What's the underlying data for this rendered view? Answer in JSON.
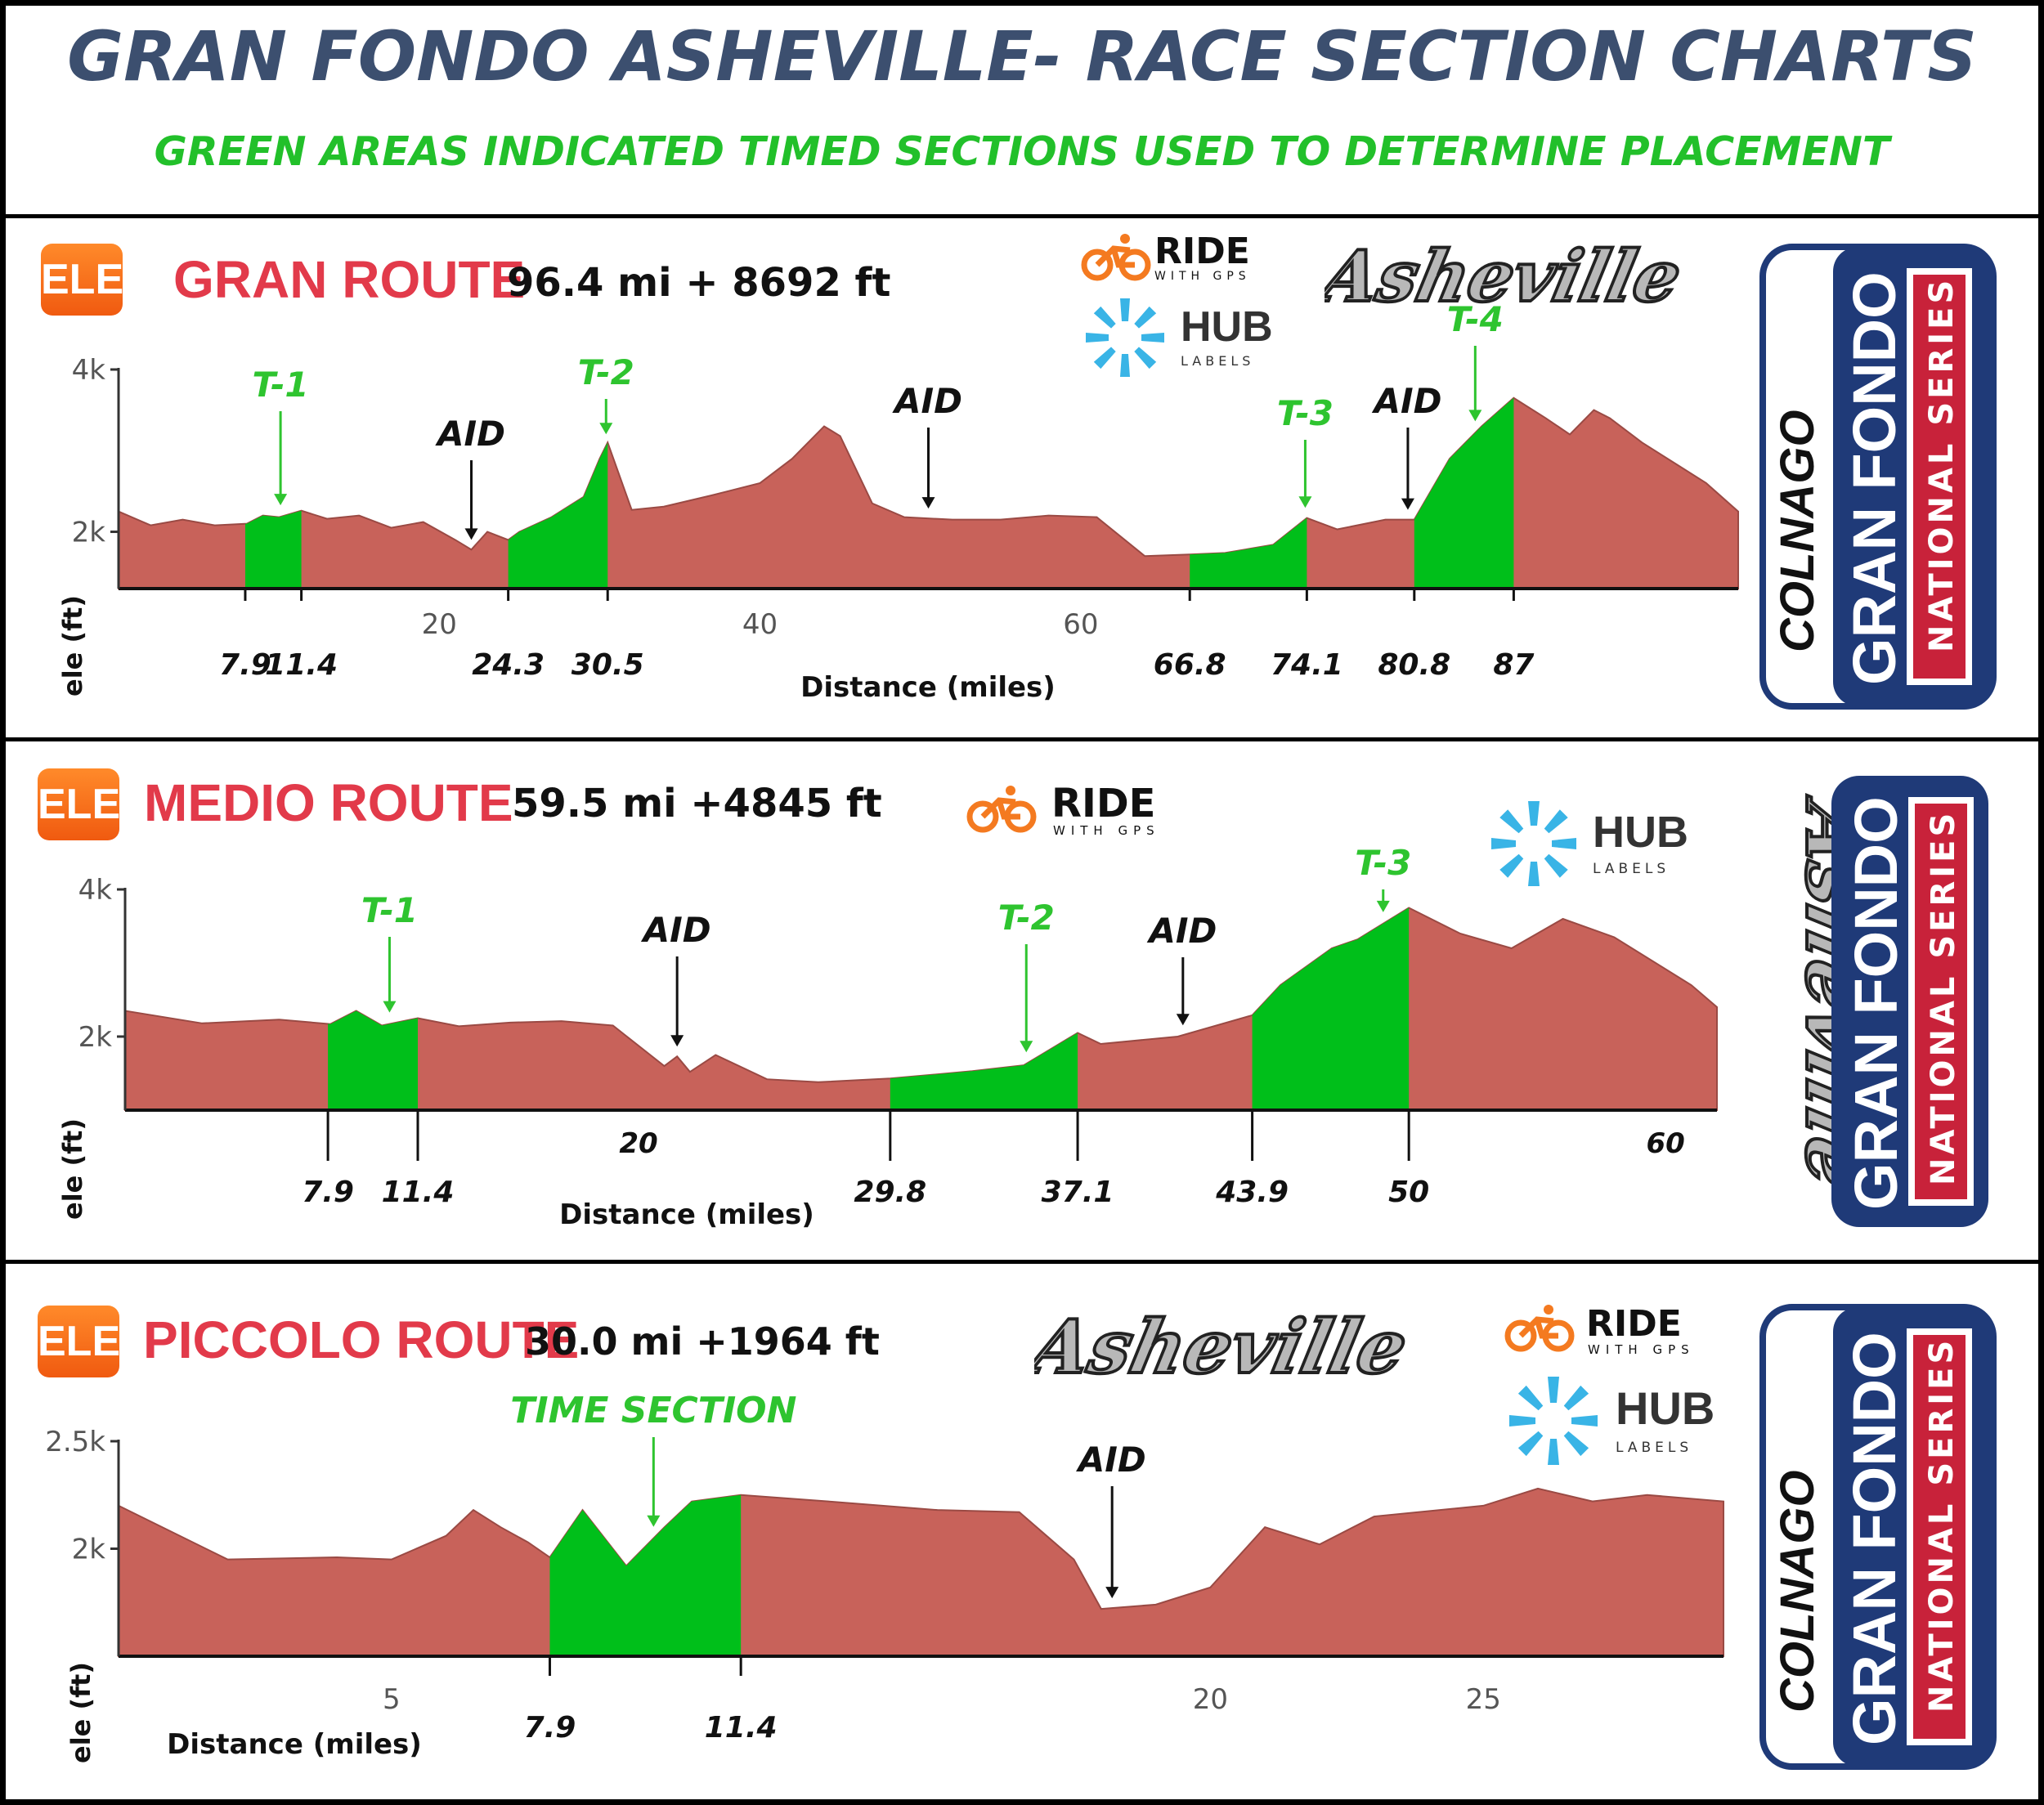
{
  "header": {
    "title": "GRAN FONDO ASHEVILLE- RACE SECTION CHARTS",
    "subtitle": "GREEN AREAS INDICATED TIMED SECTIONS USED TO DETERMINE PLACEMENT"
  },
  "branding": {
    "ele_badge": "ELE",
    "ride_with_gps_line1": "RIDE",
    "ride_with_gps_line2": "WITH GPS",
    "hub_line1": "HUB",
    "hub_line2": "LABELS",
    "asheville_script": "Asheville",
    "colnago": "COLNAGO",
    "gran_fondo": "GRAN FONDO",
    "national_series": "NATIONAL SERIES"
  },
  "colors": {
    "title": "#3c4f6f",
    "subtitle_green": "#22c02a",
    "route_red": "#e23a4a",
    "profile_fill": "#c8625a",
    "timed_fill": "#00bf1a",
    "label_green": "#2ec42f",
    "badge_orange": "#f47a20",
    "hub_blue": "#39b4e6",
    "navy": "#1f3a78",
    "series_red": "#c8223a"
  },
  "routes": [
    {
      "name": "GRAN ROUTE",
      "stats": "96.4 mi + 8692 ft"
    },
    {
      "name": "MEDIO ROUTE",
      "stats": "59.5 mi +4845 ft"
    },
    {
      "name": "PICCOLO ROUTE",
      "stats": "30.0 mi +1964 ft"
    }
  ],
  "chart_data": [
    {
      "type": "area",
      "xlabel": "Distance (miles)",
      "ylabel": "ele (ft)",
      "xlim": [
        0,
        101
      ],
      "ylim": [
        1300,
        4000
      ],
      "x_ticks": [
        20,
        40,
        60
      ],
      "x_tick_labels": [
        "20",
        "40",
        "60"
      ],
      "y_ticks": [
        2000,
        4000
      ],
      "y_tick_labels": [
        "2k",
        "4k"
      ],
      "profile": {
        "x": [
          0,
          2,
          4,
          6,
          8,
          9,
          10,
          11.4,
          13,
          15,
          17,
          19,
          21,
          22,
          23,
          24.3,
          25,
          27,
          29,
          30,
          30.5,
          32,
          34,
          37,
          40,
          42,
          44,
          45,
          47,
          49,
          52,
          55,
          58,
          61,
          64,
          66.8,
          69,
          72,
          74.1,
          76,
          79,
          80.8,
          83,
          85,
          87,
          89,
          90.5,
          92,
          93,
          95,
          97,
          99,
          101
        ],
        "y": [
          2250,
          2080,
          2150,
          2080,
          2100,
          2200,
          2180,
          2260,
          2160,
          2200,
          2050,
          2120,
          1900,
          1780,
          2000,
          1900,
          2000,
          2180,
          2430,
          2900,
          3100,
          2270,
          2310,
          2450,
          2600,
          2900,
          3300,
          3180,
          2350,
          2180,
          2150,
          2150,
          2200,
          2180,
          1700,
          1720,
          1740,
          1840,
          2170,
          2030,
          2150,
          2150,
          2900,
          3300,
          3650,
          3400,
          3200,
          3500,
          3400,
          3100,
          2850,
          2600,
          2250
        ]
      },
      "timed_sections": [
        {
          "label": "T-1",
          "start": 7.9,
          "end": 11.4
        },
        {
          "label": "T-2",
          "start": 24.3,
          "end": 30.5
        },
        {
          "label": "T-3",
          "start": 66.8,
          "end": 74.1
        },
        {
          "label": "T-4",
          "start": 80.8,
          "end": 87
        }
      ],
      "boundary_labels": [
        {
          "x": 7.9,
          "text": "7.9"
        },
        {
          "x": 11.4,
          "text": "11.4"
        },
        {
          "x": 24.3,
          "text": "24.3"
        },
        {
          "x": 30.5,
          "text": "30.5"
        },
        {
          "x": 66.8,
          "text": "66.8"
        },
        {
          "x": 74.1,
          "text": "74.1"
        },
        {
          "x": 80.8,
          "text": "80.8"
        },
        {
          "x": 87,
          "text": "87"
        }
      ],
      "annotations": [
        {
          "text": "T-1",
          "x": 10.1,
          "kind": "timed"
        },
        {
          "text": "AID",
          "x": 22,
          "kind": "aid"
        },
        {
          "text": "T-2",
          "x": 30.4,
          "kind": "timed"
        },
        {
          "text": "AID",
          "x": 50.5,
          "kind": "aid"
        },
        {
          "text": "T-3",
          "x": 74.0,
          "kind": "timed"
        },
        {
          "text": "AID",
          "x": 80.4,
          "kind": "aid"
        },
        {
          "text": "T-4",
          "x": 84.6,
          "kind": "timed"
        }
      ]
    },
    {
      "type": "area",
      "xlabel": "Distance (miles)",
      "ylabel": "ele (ft)",
      "xlim": [
        0,
        62
      ],
      "ylim": [
        1000,
        4000
      ],
      "x_ticks": [
        20,
        60
      ],
      "x_tick_labels": [
        "20",
        "60"
      ],
      "y_ticks": [
        2000,
        4000
      ],
      "y_tick_labels": [
        "2k",
        "4k"
      ],
      "profile": {
        "x": [
          0,
          3,
          6,
          8,
          9,
          10,
          11.4,
          13,
          15,
          17,
          19,
          21,
          21.5,
          22,
          23,
          25,
          27,
          29.8,
          33,
          35,
          37.1,
          38,
          41,
          43.9,
          45,
          47,
          48,
          50,
          52,
          54,
          56,
          58,
          61,
          62
        ],
        "y": [
          2350,
          2180,
          2230,
          2170,
          2350,
          2150,
          2250,
          2140,
          2190,
          2210,
          2150,
          1600,
          1730,
          1520,
          1750,
          1420,
          1380,
          1430,
          1530,
          1610,
          2050,
          1900,
          2000,
          2290,
          2700,
          3200,
          3320,
          3750,
          3400,
          3200,
          3600,
          3350,
          2700,
          2400
        ]
      },
      "timed_sections": [
        {
          "label": "T-1",
          "start": 7.9,
          "end": 11.4
        },
        {
          "label": "T-2",
          "start": 29.8,
          "end": 37.1
        },
        {
          "label": "T-3",
          "start": 43.9,
          "end": 50
        }
      ],
      "boundary_labels": [
        {
          "x": 7.9,
          "text": "7.9"
        },
        {
          "x": 11.4,
          "text": "11.4"
        },
        {
          "x": 29.8,
          "text": "29.8"
        },
        {
          "x": 37.1,
          "text": "37.1"
        },
        {
          "x": 43.9,
          "text": "43.9"
        },
        {
          "x": 50,
          "text": "50"
        }
      ],
      "annotations": [
        {
          "text": "T-1",
          "x": 10.3,
          "kind": "timed"
        },
        {
          "text": "AID",
          "x": 21.5,
          "kind": "aid"
        },
        {
          "text": "T-2",
          "x": 35.1,
          "kind": "timed"
        },
        {
          "text": "AID",
          "x": 41.2,
          "kind": "aid"
        },
        {
          "text": "T-3",
          "x": 49.0,
          "kind": "timed"
        }
      ]
    },
    {
      "type": "area",
      "xlabel": "Distance (miles)",
      "ylabel": "ele (ft)",
      "xlim": [
        0,
        29.4
      ],
      "ylim": [
        1500,
        2500
      ],
      "x_ticks": [
        5,
        20,
        25
      ],
      "x_tick_labels": [
        "5",
        "20",
        "25"
      ],
      "y_ticks": [
        2000,
        2500
      ],
      "y_tick_labels": [
        "2k",
        "2.5k"
      ],
      "profile": {
        "x": [
          0,
          2,
          4,
          5,
          6,
          6.5,
          7,
          7.5,
          7.9,
          8.5,
          9.3,
          10,
          10.5,
          11.4,
          13,
          15,
          16.5,
          17.5,
          18,
          19,
          20,
          21,
          22,
          23,
          25,
          26,
          27,
          28,
          29.4
        ],
        "y": [
          2200,
          1950,
          1960,
          1950,
          2060,
          2180,
          2100,
          2030,
          1960,
          2180,
          1920,
          2100,
          2220,
          2250,
          2220,
          2180,
          2170,
          1950,
          1720,
          1740,
          1820,
          2100,
          2020,
          2150,
          2200,
          2280,
          2220,
          2250,
          2220
        ]
      },
      "timed_sections": [
        {
          "label": "TIME SECTION",
          "start": 7.9,
          "end": 11.4
        }
      ],
      "boundary_labels": [
        {
          "x": 7.9,
          "text": "7.9"
        },
        {
          "x": 11.4,
          "text": "11.4"
        }
      ],
      "annotations": [
        {
          "text": "TIME SECTION",
          "x": 9.8,
          "kind": "timed"
        },
        {
          "text": "AID",
          "x": 18.2,
          "kind": "aid"
        }
      ]
    }
  ]
}
